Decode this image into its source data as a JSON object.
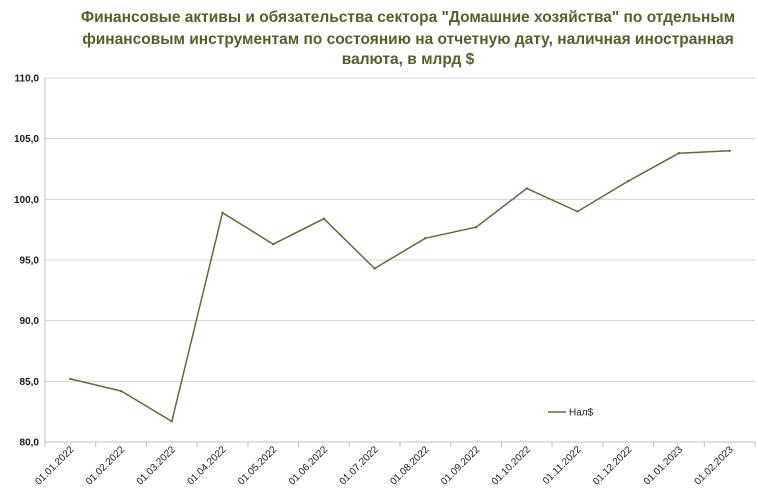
{
  "chart_data": {
    "type": "line",
    "title_lines": [
      "Финансовые активы и обязательства сектора \"Домашние хозяйства\" по отдельным",
      "финансовым инструментам по состоянию на отчетную дату, наличная иностранная",
      "валюта, в млрд $"
    ],
    "categories": [
      "01.01.2022",
      "01.02.2022",
      "01.03.2022",
      "01.04.2022",
      "01.05.2022",
      "01.06.2022",
      "01.07.2022",
      "01.08.2022",
      "01.09.2022",
      "01.10.2022",
      "01.11.2022",
      "01.12.2022",
      "01.01.2023",
      "01.02.2023"
    ],
    "series": [
      {
        "name": "Нал$",
        "color": "#5a6e3a",
        "values": [
          85.2,
          84.2,
          81.7,
          98.9,
          96.3,
          98.4,
          94.3,
          96.8,
          97.7,
          100.9,
          99.0,
          101.5,
          103.8,
          104.0
        ]
      }
    ],
    "ylim": [
      80,
      110
    ],
    "yticks": [
      "80,0",
      "85,0",
      "90,0",
      "95,0",
      "100,0",
      "105,0",
      "110,0"
    ],
    "grid": true,
    "legend": "inside-bottom-right"
  }
}
